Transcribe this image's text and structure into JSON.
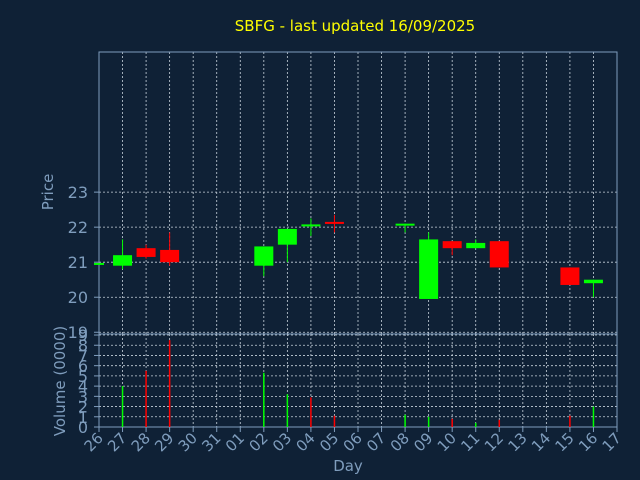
{
  "colors": {
    "background": "#0f2136",
    "title": "#ffff00",
    "axis_text": "#7f9dbd",
    "axis_line": "#7f9dbd",
    "grid": "#c8d2dc",
    "up": "#00ff00",
    "down": "#ff0000"
  },
  "chart_data": [
    {
      "type": "candlestick",
      "title": "SBFG - last updated 16/09/2025",
      "xlabel": "",
      "ylabel": "Price",
      "ylim": [
        18.95,
        27.0
      ],
      "yticks": [
        19,
        20,
        21,
        22,
        23
      ],
      "grid": true,
      "categories": [
        "26",
        "27",
        "28",
        "29",
        "30",
        "31",
        "01",
        "02",
        "03",
        "04",
        "05",
        "06",
        "07",
        "08",
        "09",
        "10",
        "11",
        "12",
        "13",
        "14",
        "15",
        "16",
        "17"
      ],
      "candles": [
        {
          "x": "26",
          "open": 20.95,
          "close": 20.95,
          "high": 20.95,
          "low": 20.95
        },
        {
          "x": "27",
          "open": 20.9,
          "close": 21.2,
          "high": 21.65,
          "low": 20.8
        },
        {
          "x": "28",
          "open": 21.4,
          "close": 21.15,
          "high": 21.5,
          "low": 21.1
        },
        {
          "x": "29",
          "open": 21.35,
          "close": 21.0,
          "high": 21.85,
          "low": 20.9
        },
        {
          "x": "02",
          "open": 20.9,
          "close": 21.45,
          "high": 21.45,
          "low": 20.6
        },
        {
          "x": "03",
          "open": 21.5,
          "close": 21.95,
          "high": 21.95,
          "low": 21.0
        },
        {
          "x": "04",
          "open": 22.05,
          "close": 22.05,
          "high": 22.25,
          "low": 21.75
        },
        {
          "x": "05",
          "open": 22.15,
          "close": 22.1,
          "high": 22.35,
          "low": 21.85
        },
        {
          "x": "08",
          "open": 22.05,
          "close": 22.1,
          "high": 22.1,
          "low": 21.85
        },
        {
          "x": "09",
          "open": 19.95,
          "close": 21.65,
          "high": 21.85,
          "low": 19.95
        },
        {
          "x": "10",
          "open": 21.6,
          "close": 21.4,
          "high": 21.6,
          "low": 21.2
        },
        {
          "x": "11",
          "open": 21.4,
          "close": 21.55,
          "high": 21.65,
          "low": 21.4
        },
        {
          "x": "12",
          "open": 21.6,
          "close": 20.85,
          "high": 21.6,
          "low": 20.85
        },
        {
          "x": "15",
          "open": 20.85,
          "close": 20.35,
          "high": 20.85,
          "low": 20.35
        },
        {
          "x": "16",
          "open": 20.4,
          "close": 20.5,
          "high": 20.5,
          "low": 20.0
        }
      ]
    },
    {
      "type": "bar",
      "xlabel": "Day",
      "ylabel": "Volume (0000)",
      "ylim": [
        0,
        9.1
      ],
      "yticks": [
        0,
        1,
        2,
        3,
        4,
        5,
        6,
        7,
        8,
        9
      ],
      "grid": true,
      "categories": [
        "26",
        "27",
        "28",
        "29",
        "30",
        "31",
        "01",
        "02",
        "03",
        "04",
        "05",
        "06",
        "07",
        "08",
        "09",
        "10",
        "11",
        "12",
        "13",
        "14",
        "15",
        "16",
        "17"
      ],
      "bars": [
        {
          "x": "27",
          "value": 4.0,
          "direction": "up"
        },
        {
          "x": "28",
          "value": 5.5,
          "direction": "down"
        },
        {
          "x": "29",
          "value": 8.5,
          "direction": "down"
        },
        {
          "x": "02",
          "value": 5.3,
          "direction": "up"
        },
        {
          "x": "03",
          "value": 3.2,
          "direction": "up"
        },
        {
          "x": "04",
          "value": 2.9,
          "direction": "down"
        },
        {
          "x": "05",
          "value": 1.1,
          "direction": "down"
        },
        {
          "x": "08",
          "value": 1.2,
          "direction": "up"
        },
        {
          "x": "09",
          "value": 1.0,
          "direction": "up"
        },
        {
          "x": "10",
          "value": 0.8,
          "direction": "down"
        },
        {
          "x": "11",
          "value": 0.4,
          "direction": "up"
        },
        {
          "x": "12",
          "value": 0.7,
          "direction": "down"
        },
        {
          "x": "15",
          "value": 1.1,
          "direction": "down"
        },
        {
          "x": "16",
          "value": 2.0,
          "direction": "up"
        }
      ]
    }
  ]
}
